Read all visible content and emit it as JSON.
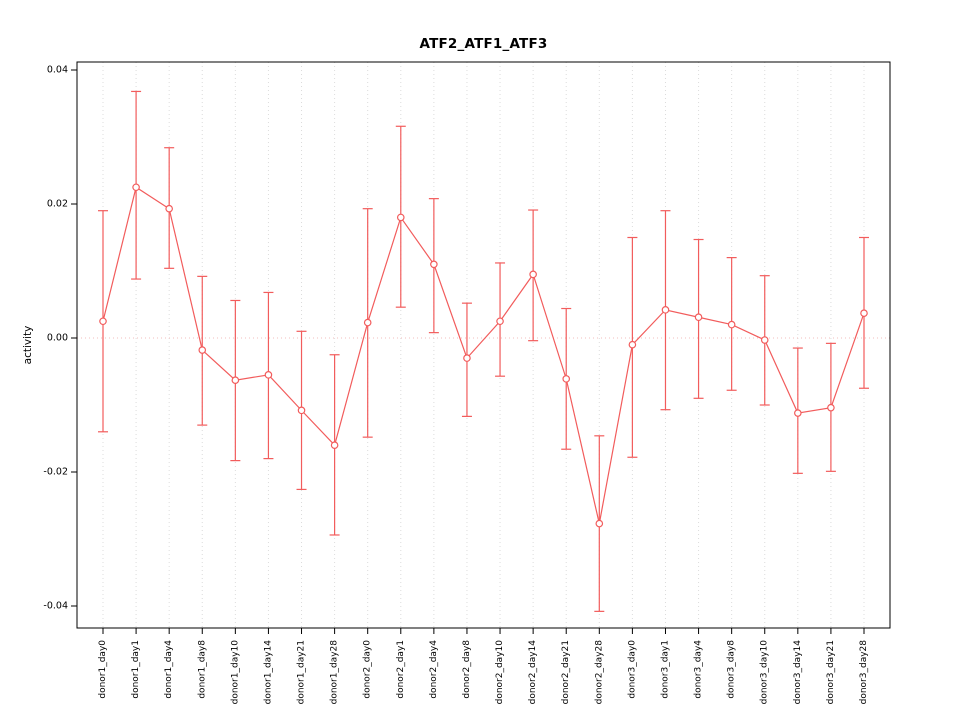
{
  "chart_data": {
    "type": "line",
    "title": "ATF2_ATF1_ATF3",
    "xlabel": "",
    "ylabel": "activity",
    "ylim": [
      -0.04,
      0.04
    ],
    "yticks": [
      -0.04,
      -0.02,
      0.0,
      0.02,
      0.04
    ],
    "ytick_labels": [
      "-0.04",
      "-0.02",
      "0.00",
      "0.02",
      "0.04"
    ],
    "grid": "vertical dotted gridlines at each category; dotted horizontal reference line at y=0; solid black plot box",
    "legend": "none",
    "marker": "open-circle",
    "error_bars": true,
    "categories": [
      "donor1_day0",
      "donor1_day1",
      "donor1_day4",
      "donor1_day8",
      "donor1_day10",
      "donor1_day14",
      "donor1_day21",
      "donor1_day28",
      "donor2_day0",
      "donor2_day1",
      "donor2_day4",
      "donor2_day8",
      "donor2_day10",
      "donor2_day14",
      "donor2_day21",
      "donor2_day28",
      "donor3_day0",
      "donor3_day1",
      "donor3_day4",
      "donor3_day8",
      "donor3_day10",
      "donor3_day14",
      "donor3_day21",
      "donor3_day28"
    ],
    "series": [
      {
        "name": "activity",
        "values": [
          0.0025,
          0.0225,
          0.0193,
          -0.0018,
          -0.0063,
          -0.0055,
          -0.0108,
          -0.016,
          0.0023,
          0.018,
          0.011,
          -0.003,
          0.0025,
          0.0095,
          -0.0061,
          -0.0277,
          -0.001,
          0.0042,
          0.0031,
          0.002,
          -0.0003,
          -0.0112,
          -0.0104,
          0.0037
        ],
        "upper": [
          0.019,
          0.0368,
          0.0284,
          0.0092,
          0.0056,
          0.0068,
          0.001,
          -0.0025,
          0.0193,
          0.0316,
          0.0208,
          0.0052,
          0.0112,
          0.0191,
          0.0044,
          -0.0146,
          0.015,
          0.019,
          0.0147,
          0.012,
          0.0093,
          -0.0015,
          -0.0008,
          0.015
        ],
        "lower": [
          -0.014,
          0.0088,
          0.0104,
          -0.013,
          -0.0183,
          -0.018,
          -0.0226,
          -0.0294,
          -0.0148,
          0.0046,
          0.0008,
          -0.0117,
          -0.0057,
          -0.0004,
          -0.0166,
          -0.0408,
          -0.0178,
          -0.0107,
          -0.009,
          -0.0078,
          -0.01,
          -0.0202,
          -0.0199,
          -0.0075
        ]
      }
    ],
    "colors": {
      "series": "#f25c5c",
      "grid": "#dcdcdc",
      "zero_line": "#f3bcbc",
      "box": "#000000",
      "background": "#ffffff"
    }
  }
}
